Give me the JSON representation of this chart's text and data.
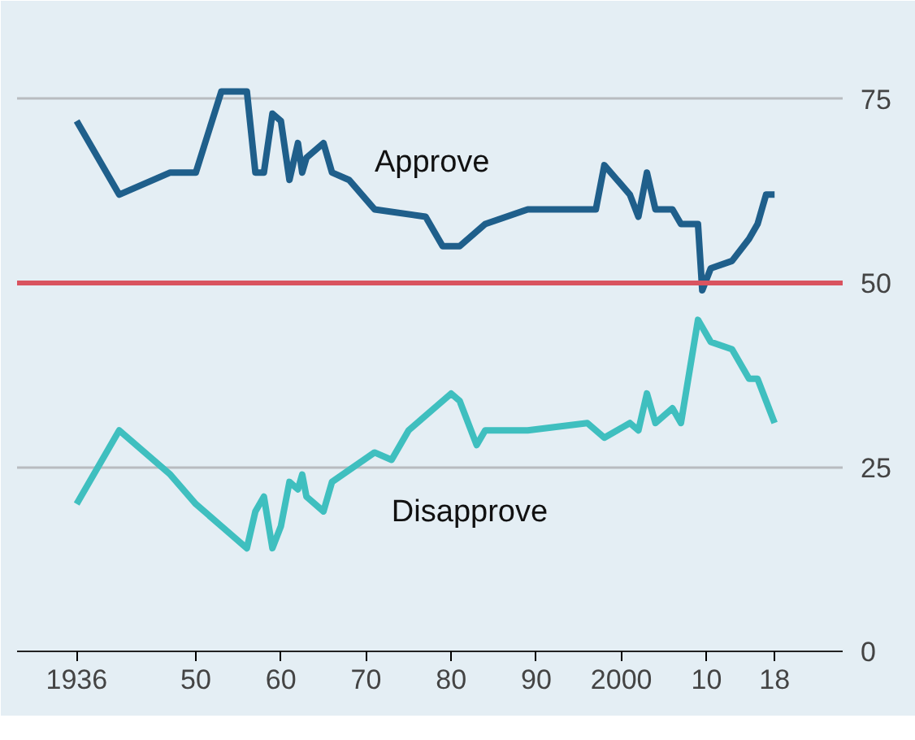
{
  "chart_data": {
    "type": "line",
    "xlim": [
      1929,
      2026
    ],
    "ylim": [
      0,
      85
    ],
    "xticks": [
      1936,
      {
        "value": 1950,
        "label": "50"
      },
      {
        "value": 1960,
        "label": "60"
      },
      {
        "value": 1970,
        "label": "70"
      },
      {
        "value": 1980,
        "label": "80"
      },
      {
        "value": 1990,
        "label": "90"
      },
      2000,
      {
        "value": 2010,
        "label": "10"
      },
      {
        "value": 2018,
        "label": "18"
      }
    ],
    "yticks": [
      0,
      25,
      50,
      75
    ],
    "grid": "y",
    "ref_lines": [
      {
        "axis": "y",
        "value": 50,
        "color": "#d9535f"
      }
    ],
    "series": [
      {
        "name": "Approve",
        "color": "#1f5f8b",
        "x": [
          1936,
          1941,
          1947,
          1950,
          1953,
          1956,
          1957,
          1958,
          1959,
          1960,
          1961,
          1962,
          1962.5,
          1963,
          1965,
          1966,
          1968,
          1971,
          1977,
          1979,
          1981,
          1984,
          1989,
          1997,
          1998,
          2001,
          2002,
          2003,
          2004,
          2006,
          2007,
          2009,
          2009.5,
          2010.5,
          2013,
          2015,
          2016,
          2017,
          2018
        ],
        "values": [
          72,
          62,
          65,
          65,
          76,
          76,
          65,
          65,
          73,
          72,
          64,
          69,
          65,
          67,
          69,
          65,
          64,
          60,
          59,
          55,
          55,
          58,
          60,
          60,
          66,
          62,
          59,
          65,
          60,
          60,
          58,
          58,
          49,
          52,
          53,
          56,
          58,
          62,
          62
        ]
      },
      {
        "name": "Disapprove",
        "color": "#3fbfbf",
        "x": [
          1936,
          1941,
          1947,
          1950,
          1953,
          1956,
          1957,
          1958,
          1959,
          1960,
          1961,
          1962,
          1962.5,
          1963,
          1965,
          1966,
          1971,
          1973,
          1975,
          1980,
          1981,
          1983,
          1984,
          1989,
          1996,
          1998,
          2001,
          2002,
          2003,
          2004,
          2006,
          2007,
          2009,
          2010.5,
          2013,
          2015,
          2016,
          2017,
          2018
        ],
        "values": [
          20,
          30,
          24,
          20,
          17,
          14,
          19,
          21,
          14,
          17,
          23,
          22,
          24,
          21,
          19,
          23,
          27,
          26,
          30,
          35,
          34,
          28,
          30,
          30,
          31,
          29,
          31,
          30,
          35,
          31,
          33,
          31,
          45,
          42,
          41,
          37,
          37,
          34,
          31
        ]
      }
    ]
  }
}
